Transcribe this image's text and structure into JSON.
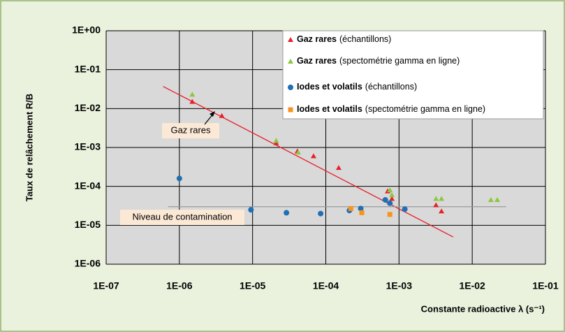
{
  "chart_data": {
    "type": "scatter",
    "y_label": "Taux de relâchement R/B",
    "x_label": "Constante radioactive λ (s⁻¹)",
    "log_x": true,
    "log_y": true,
    "grid": true,
    "legend": "upper right",
    "xlim": [
      1e-07,
      0.1
    ],
    "ylim": [
      1e-06,
      1
    ],
    "xticks": [
      {
        "value": 1e-07,
        "label": "1E-07"
      },
      {
        "value": 1e-06,
        "label": "1E-06"
      },
      {
        "value": 1e-05,
        "label": "1E-05"
      },
      {
        "value": 0.0001,
        "label": "1E-04"
      },
      {
        "value": 0.001,
        "label": "1E-03"
      },
      {
        "value": 0.01,
        "label": "1E-02"
      },
      {
        "value": 0.1,
        "label": "1E-01"
      }
    ],
    "yticks": [
      {
        "value": 1e-06,
        "label": "1E-06"
      },
      {
        "value": 1e-05,
        "label": "1E-05"
      },
      {
        "value": 0.0001,
        "label": "1E-04"
      },
      {
        "value": 0.001,
        "label": "1E-03"
      },
      {
        "value": 0.01,
        "label": "1E-02"
      },
      {
        "value": 0.1,
        "label": "1E-01"
      },
      {
        "value": 1,
        "label": "1E+00"
      }
    ],
    "series": [
      {
        "name": "Gaz rares",
        "detail": "(échantillons)",
        "color": "#e8202a",
        "marker": "triangle",
        "x": [
          1.5e-06,
          3.8e-06,
          2.1e-05,
          4.1e-05,
          6.8e-05,
          0.00015,
          0.0007,
          0.0008,
          0.0032,
          0.0038
        ],
        "values": [
          0.015,
          0.0065,
          0.0013,
          0.0008,
          0.0006,
          0.0003,
          7.5e-05,
          4.8e-05,
          3.3e-05,
          2.3e-05
        ]
      },
      {
        "name": "Gaz rares",
        "detail": "(spectométrie gamma en ligne)",
        "color": "#8dc63f",
        "marker": "triangle",
        "x": [
          1.5e-06,
          2.1e-05,
          4.2e-05,
          0.00075,
          0.0008,
          0.0032,
          0.0038,
          0.018,
          0.022
        ],
        "values": [
          0.023,
          0.0015,
          0.00075,
          8e-05,
          6e-05,
          4.8e-05,
          4.8e-05,
          4.5e-05,
          4.5e-05
        ]
      },
      {
        "name": "Iodes et volatils",
        "detail": "(échantillons)",
        "color": "#1f6fb5",
        "marker": "circle",
        "x": [
          1e-06,
          9.5e-06,
          2.9e-05,
          8.5e-05,
          0.00021,
          0.0003,
          0.00065,
          0.00075,
          0.0012
        ],
        "values": [
          0.00016,
          2.5e-05,
          2.1e-05,
          2e-05,
          2.4e-05,
          2.7e-05,
          4.5e-05,
          3.7e-05,
          2.6e-05
        ]
      },
      {
        "name": "Iodes et volatils",
        "detail": "(spectométrie gamma en ligne)",
        "color": "#f7941d",
        "marker": "square",
        "x": [
          0.00022,
          0.00031,
          0.00075
        ],
        "values": [
          2.7e-05,
          2.1e-05,
          1.9e-05
        ]
      }
    ],
    "lines": [
      {
        "color": "#e8202a",
        "x": [
          6e-07,
          0.0055
        ],
        "values": [
          0.037,
          5e-06
        ]
      },
      {
        "color": "#9a9a9a",
        "x": [
          7e-07,
          0.029
        ],
        "values": [
          3e-05,
          3e-05
        ]
      }
    ],
    "annotations": [
      "Gaz rares",
      "Niveau de contamination"
    ]
  }
}
